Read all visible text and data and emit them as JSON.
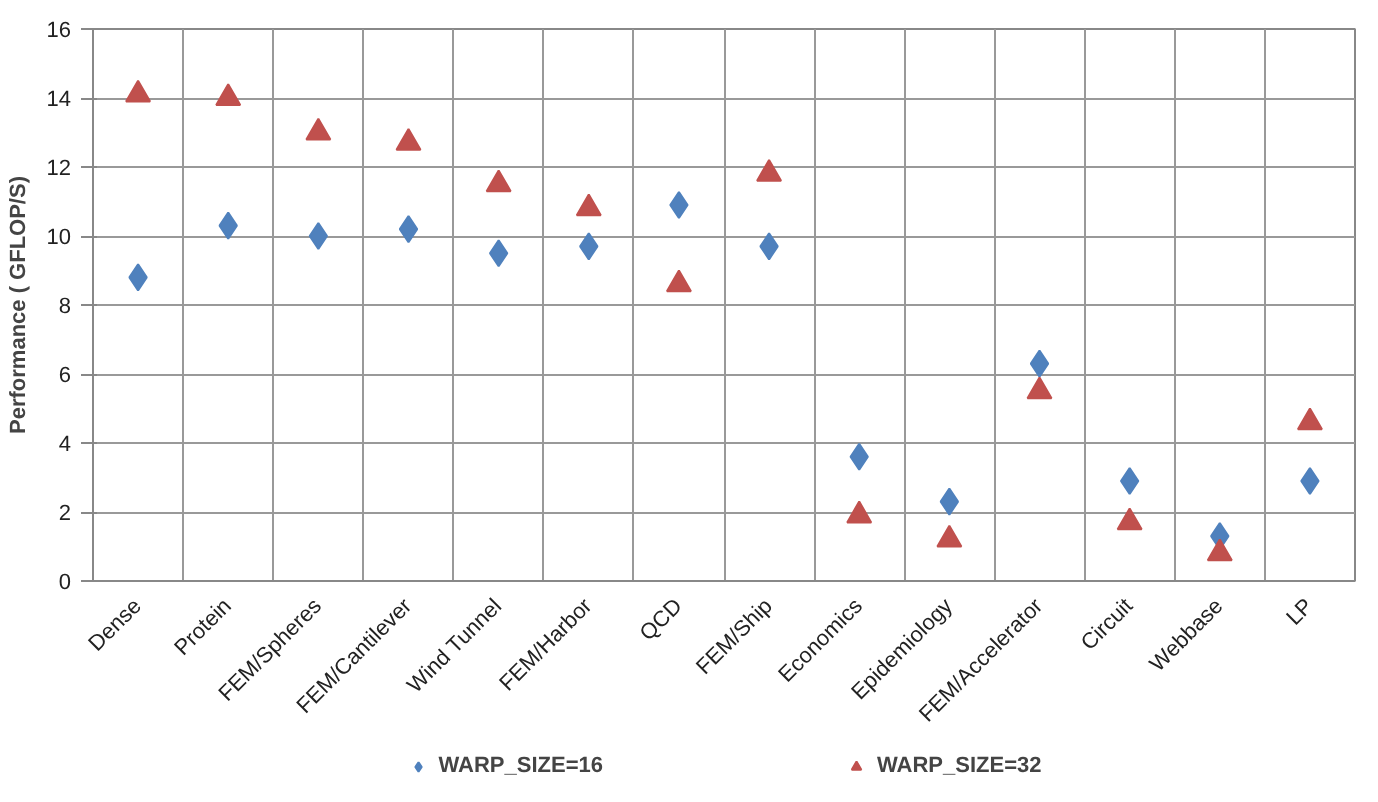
{
  "chart_data": {
    "type": "scatter",
    "ylabel": "Performance ( GFLOP/S)",
    "categories": [
      "Dense",
      "Protein",
      "FEM/Spheres",
      "FEM/Cantilever",
      "Wind Tunnel",
      "FEM/Harbor",
      "QCD",
      "FEM/Ship",
      "Economics",
      "Epidemiology",
      "FEM/Accelerator",
      "Circuit",
      "Webbase",
      "LP"
    ],
    "series": [
      {
        "name": "WARP_SIZE=16",
        "color": "#4f81bd",
        "marker": "diamond",
        "values": [
          8.8,
          10.3,
          10.0,
          10.2,
          9.5,
          9.7,
          10.9,
          9.7,
          3.6,
          2.3,
          6.3,
          2.9,
          1.3,
          2.9
        ]
      },
      {
        "name": "WARP_SIZE=32",
        "color": "#c0504d",
        "marker": "triangle",
        "values": [
          14.1,
          14.0,
          13.0,
          12.7,
          11.5,
          10.8,
          8.6,
          11.8,
          1.9,
          1.2,
          5.5,
          1.7,
          0.8,
          4.6
        ]
      }
    ],
    "ylim": [
      0,
      16
    ],
    "yticks": [
      0,
      2,
      4,
      6,
      8,
      10,
      12,
      14,
      16
    ],
    "grid": true,
    "legend": "bottom"
  }
}
